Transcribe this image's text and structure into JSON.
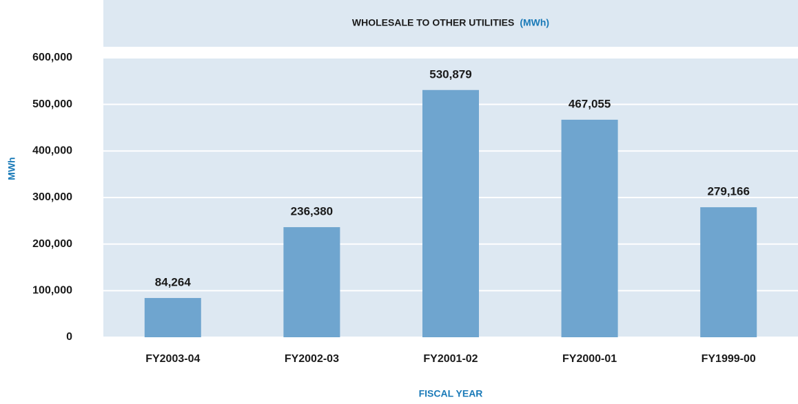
{
  "chart_data": {
    "type": "bar",
    "title": "WHOLESALE TO OTHER UTILITIES",
    "title_unit": "(MWh)",
    "x_label": "FISCAL YEAR",
    "y_label": "MWh",
    "categories": [
      "FY2003-04",
      "FY2002-03",
      "FY2001-02",
      "FY2000-01",
      "FY1999-00"
    ],
    "values": [
      84264,
      236380,
      530879,
      467055,
      279166
    ],
    "value_labels": [
      "84,264",
      "236,380",
      "530,879",
      "467,055",
      "279,166"
    ],
    "color": "#6fa5cf",
    "ylim": [
      0,
      600000
    ],
    "yticks": [
      0,
      {
        "value": 100000,
        "label": "100,000"
      },
      {
        "value": 200000,
        "label": "200,000"
      },
      {
        "value": 300000,
        "label": "300,000"
      },
      {
        "value": 400000,
        "label": "400,000"
      },
      {
        "value": 500000,
        "label": "500,000"
      },
      {
        "value": 600000,
        "label": "600,000"
      }
    ],
    "grid": true
  }
}
